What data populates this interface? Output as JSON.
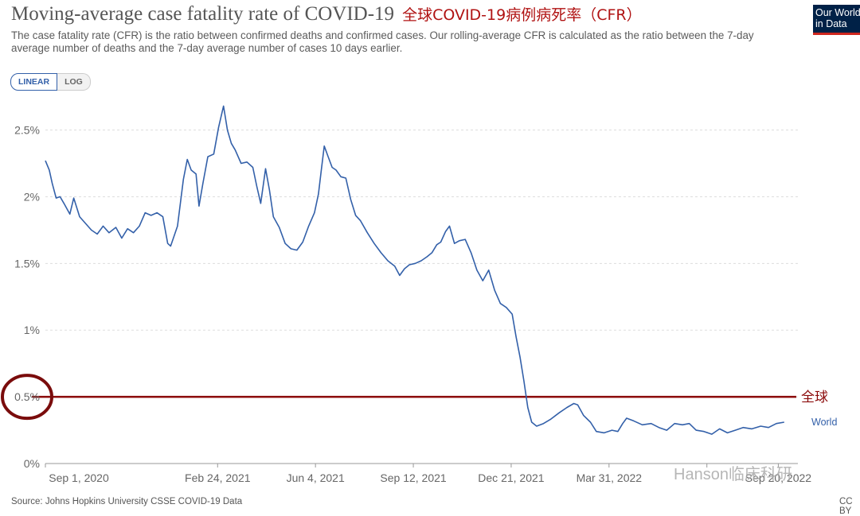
{
  "header": {
    "title": "Moving-average case fatality rate of COVID-19",
    "annotation_title": "全球COVID-19病例病死率（CFR）",
    "subtitle": "The case fatality rate (CFR) is the ratio between confirmed deaths and confirmed cases. Our rolling-average CFR is calculated as the ratio between the 7-day average number of deaths and the 7-day average number of cases 10 days earlier.",
    "logo_line1": "Our World",
    "logo_line2": "in Data"
  },
  "controls": {
    "linear_label": "LINEAR",
    "log_label": "LOG",
    "active": "LINEAR"
  },
  "footer": {
    "source": "Source: Johns Hopkins University CSSE COVID-19 Data",
    "license": "CC BY"
  },
  "watermark": "Hanson临床科研",
  "colors": {
    "series": "#3360a9",
    "reference_line": "#8b0a0a",
    "grid": "#dddddd",
    "highlight_circle": "#7a0c0c"
  },
  "chart_data": {
    "type": "line",
    "x_type": "date",
    "x_ticks": [
      "2020-09-01",
      "2021-02-24",
      "2021-06-04",
      "2021-09-12",
      "2021-12-21",
      "2022-03-31",
      "2022-07-09",
      "2022-09-20"
    ],
    "x_tick_labels": [
      "Sep 1, 2020",
      "Feb 24, 2021",
      "Jun 4, 2021",
      "Sep 12, 2021",
      "Dec 21, 2021",
      "Mar 31, 2022",
      "",
      "Sep 20, 2022"
    ],
    "xlim": [
      "2020-09-01",
      "2022-10-10"
    ],
    "y_ticks": [
      0,
      0.5,
      1,
      1.5,
      2,
      2.5
    ],
    "y_tick_labels": [
      "0%",
      "0.5%",
      "1%",
      "1.5%",
      "2%",
      "2.5%"
    ],
    "ylim": [
      0,
      2.7
    ],
    "y_unit": "%",
    "grid": "horizontal",
    "series": [
      {
        "name": "World",
        "points": [
          [
            "2020-09-01",
            2.27
          ],
          [
            "2020-09-05",
            2.2
          ],
          [
            "2020-09-08",
            2.1
          ],
          [
            "2020-09-12",
            1.99
          ],
          [
            "2020-09-16",
            2.0
          ],
          [
            "2020-09-20",
            1.95
          ],
          [
            "2020-09-26",
            1.87
          ],
          [
            "2020-09-30",
            1.99
          ],
          [
            "2020-10-06",
            1.85
          ],
          [
            "2020-10-12",
            1.8
          ],
          [
            "2020-10-18",
            1.75
          ],
          [
            "2020-10-24",
            1.72
          ],
          [
            "2020-10-30",
            1.78
          ],
          [
            "2020-11-05",
            1.73
          ],
          [
            "2020-11-12",
            1.77
          ],
          [
            "2020-11-18",
            1.69
          ],
          [
            "2020-11-24",
            1.76
          ],
          [
            "2020-11-30",
            1.73
          ],
          [
            "2020-12-06",
            1.78
          ],
          [
            "2020-12-12",
            1.88
          ],
          [
            "2020-12-18",
            1.86
          ],
          [
            "2020-12-24",
            1.88
          ],
          [
            "2020-12-30",
            1.85
          ],
          [
            "2021-01-04",
            1.65
          ],
          [
            "2021-01-07",
            1.63
          ],
          [
            "2021-01-14",
            1.78
          ],
          [
            "2021-01-20",
            2.13
          ],
          [
            "2021-01-24",
            2.28
          ],
          [
            "2021-01-28",
            2.2
          ],
          [
            "2021-02-02",
            2.17
          ],
          [
            "2021-02-05",
            1.93
          ],
          [
            "2021-02-09",
            2.1
          ],
          [
            "2021-02-14",
            2.3
          ],
          [
            "2021-02-20",
            2.32
          ],
          [
            "2021-02-25",
            2.52
          ],
          [
            "2021-03-02",
            2.68
          ],
          [
            "2021-03-06",
            2.5
          ],
          [
            "2021-03-10",
            2.4
          ],
          [
            "2021-03-14",
            2.35
          ],
          [
            "2021-03-20",
            2.25
          ],
          [
            "2021-03-26",
            2.26
          ],
          [
            "2021-04-01",
            2.22
          ],
          [
            "2021-04-05",
            2.08
          ],
          [
            "2021-04-09",
            1.95
          ],
          [
            "2021-04-14",
            2.21
          ],
          [
            "2021-04-18",
            2.05
          ],
          [
            "2021-04-22",
            1.85
          ],
          [
            "2021-04-28",
            1.77
          ],
          [
            "2021-05-04",
            1.65
          ],
          [
            "2021-05-10",
            1.61
          ],
          [
            "2021-05-16",
            1.6
          ],
          [
            "2021-05-22",
            1.66
          ],
          [
            "2021-05-28",
            1.78
          ],
          [
            "2021-06-03",
            1.88
          ],
          [
            "2021-06-07",
            2.02
          ],
          [
            "2021-06-10",
            2.2
          ],
          [
            "2021-06-13",
            2.38
          ],
          [
            "2021-06-17",
            2.3
          ],
          [
            "2021-06-21",
            2.22
          ],
          [
            "2021-06-25",
            2.2
          ],
          [
            "2021-06-30",
            2.15
          ],
          [
            "2021-07-05",
            2.14
          ],
          [
            "2021-07-10",
            1.98
          ],
          [
            "2021-07-15",
            1.86
          ],
          [
            "2021-07-20",
            1.82
          ],
          [
            "2021-07-27",
            1.73
          ],
          [
            "2021-08-03",
            1.65
          ],
          [
            "2021-08-10",
            1.58
          ],
          [
            "2021-08-17",
            1.52
          ],
          [
            "2021-08-24",
            1.48
          ],
          [
            "2021-08-29",
            1.41
          ],
          [
            "2021-09-03",
            1.46
          ],
          [
            "2021-09-08",
            1.49
          ],
          [
            "2021-09-14",
            1.5
          ],
          [
            "2021-09-20",
            1.52
          ],
          [
            "2021-09-26",
            1.55
          ],
          [
            "2021-10-01",
            1.58
          ],
          [
            "2021-10-06",
            1.64
          ],
          [
            "2021-10-10",
            1.66
          ],
          [
            "2021-10-15",
            1.74
          ],
          [
            "2021-10-19",
            1.78
          ],
          [
            "2021-10-24",
            1.65
          ],
          [
            "2021-10-29",
            1.67
          ],
          [
            "2021-11-04",
            1.68
          ],
          [
            "2021-11-10",
            1.58
          ],
          [
            "2021-11-16",
            1.45
          ],
          [
            "2021-11-22",
            1.37
          ],
          [
            "2021-11-28",
            1.45
          ],
          [
            "2021-12-04",
            1.3
          ],
          [
            "2021-12-10",
            1.2
          ],
          [
            "2021-12-16",
            1.17
          ],
          [
            "2021-12-22",
            1.12
          ],
          [
            "2021-12-26",
            0.95
          ],
          [
            "2021-12-30",
            0.8
          ],
          [
            "2022-01-03",
            0.62
          ],
          [
            "2022-01-07",
            0.42
          ],
          [
            "2022-01-11",
            0.31
          ],
          [
            "2022-01-16",
            0.28
          ],
          [
            "2022-01-23",
            0.3
          ],
          [
            "2022-01-30",
            0.33
          ],
          [
            "2022-02-08",
            0.38
          ],
          [
            "2022-02-16",
            0.42
          ],
          [
            "2022-02-23",
            0.45
          ],
          [
            "2022-02-27",
            0.44
          ],
          [
            "2022-03-05",
            0.36
          ],
          [
            "2022-03-12",
            0.31
          ],
          [
            "2022-03-18",
            0.24
          ],
          [
            "2022-03-26",
            0.23
          ],
          [
            "2022-04-03",
            0.25
          ],
          [
            "2022-04-09",
            0.24
          ],
          [
            "2022-04-14",
            0.3
          ],
          [
            "2022-04-18",
            0.34
          ],
          [
            "2022-04-25",
            0.32
          ],
          [
            "2022-05-04",
            0.29
          ],
          [
            "2022-05-13",
            0.3
          ],
          [
            "2022-05-21",
            0.27
          ],
          [
            "2022-05-29",
            0.25
          ],
          [
            "2022-06-06",
            0.3
          ],
          [
            "2022-06-14",
            0.29
          ],
          [
            "2022-06-21",
            0.3
          ],
          [
            "2022-06-28",
            0.25
          ],
          [
            "2022-07-06",
            0.24
          ],
          [
            "2022-07-14",
            0.22
          ],
          [
            "2022-07-22",
            0.26
          ],
          [
            "2022-07-30",
            0.23
          ],
          [
            "2022-08-07",
            0.25
          ],
          [
            "2022-08-15",
            0.27
          ],
          [
            "2022-08-24",
            0.26
          ],
          [
            "2022-09-02",
            0.28
          ],
          [
            "2022-09-10",
            0.27
          ],
          [
            "2022-09-18",
            0.3
          ],
          [
            "2022-09-26",
            0.31
          ]
        ]
      }
    ],
    "reference_lines": [
      {
        "value": 0.5,
        "label": "全球"
      }
    ],
    "highlight": {
      "tick": "0.5%",
      "shape": "circle"
    }
  }
}
